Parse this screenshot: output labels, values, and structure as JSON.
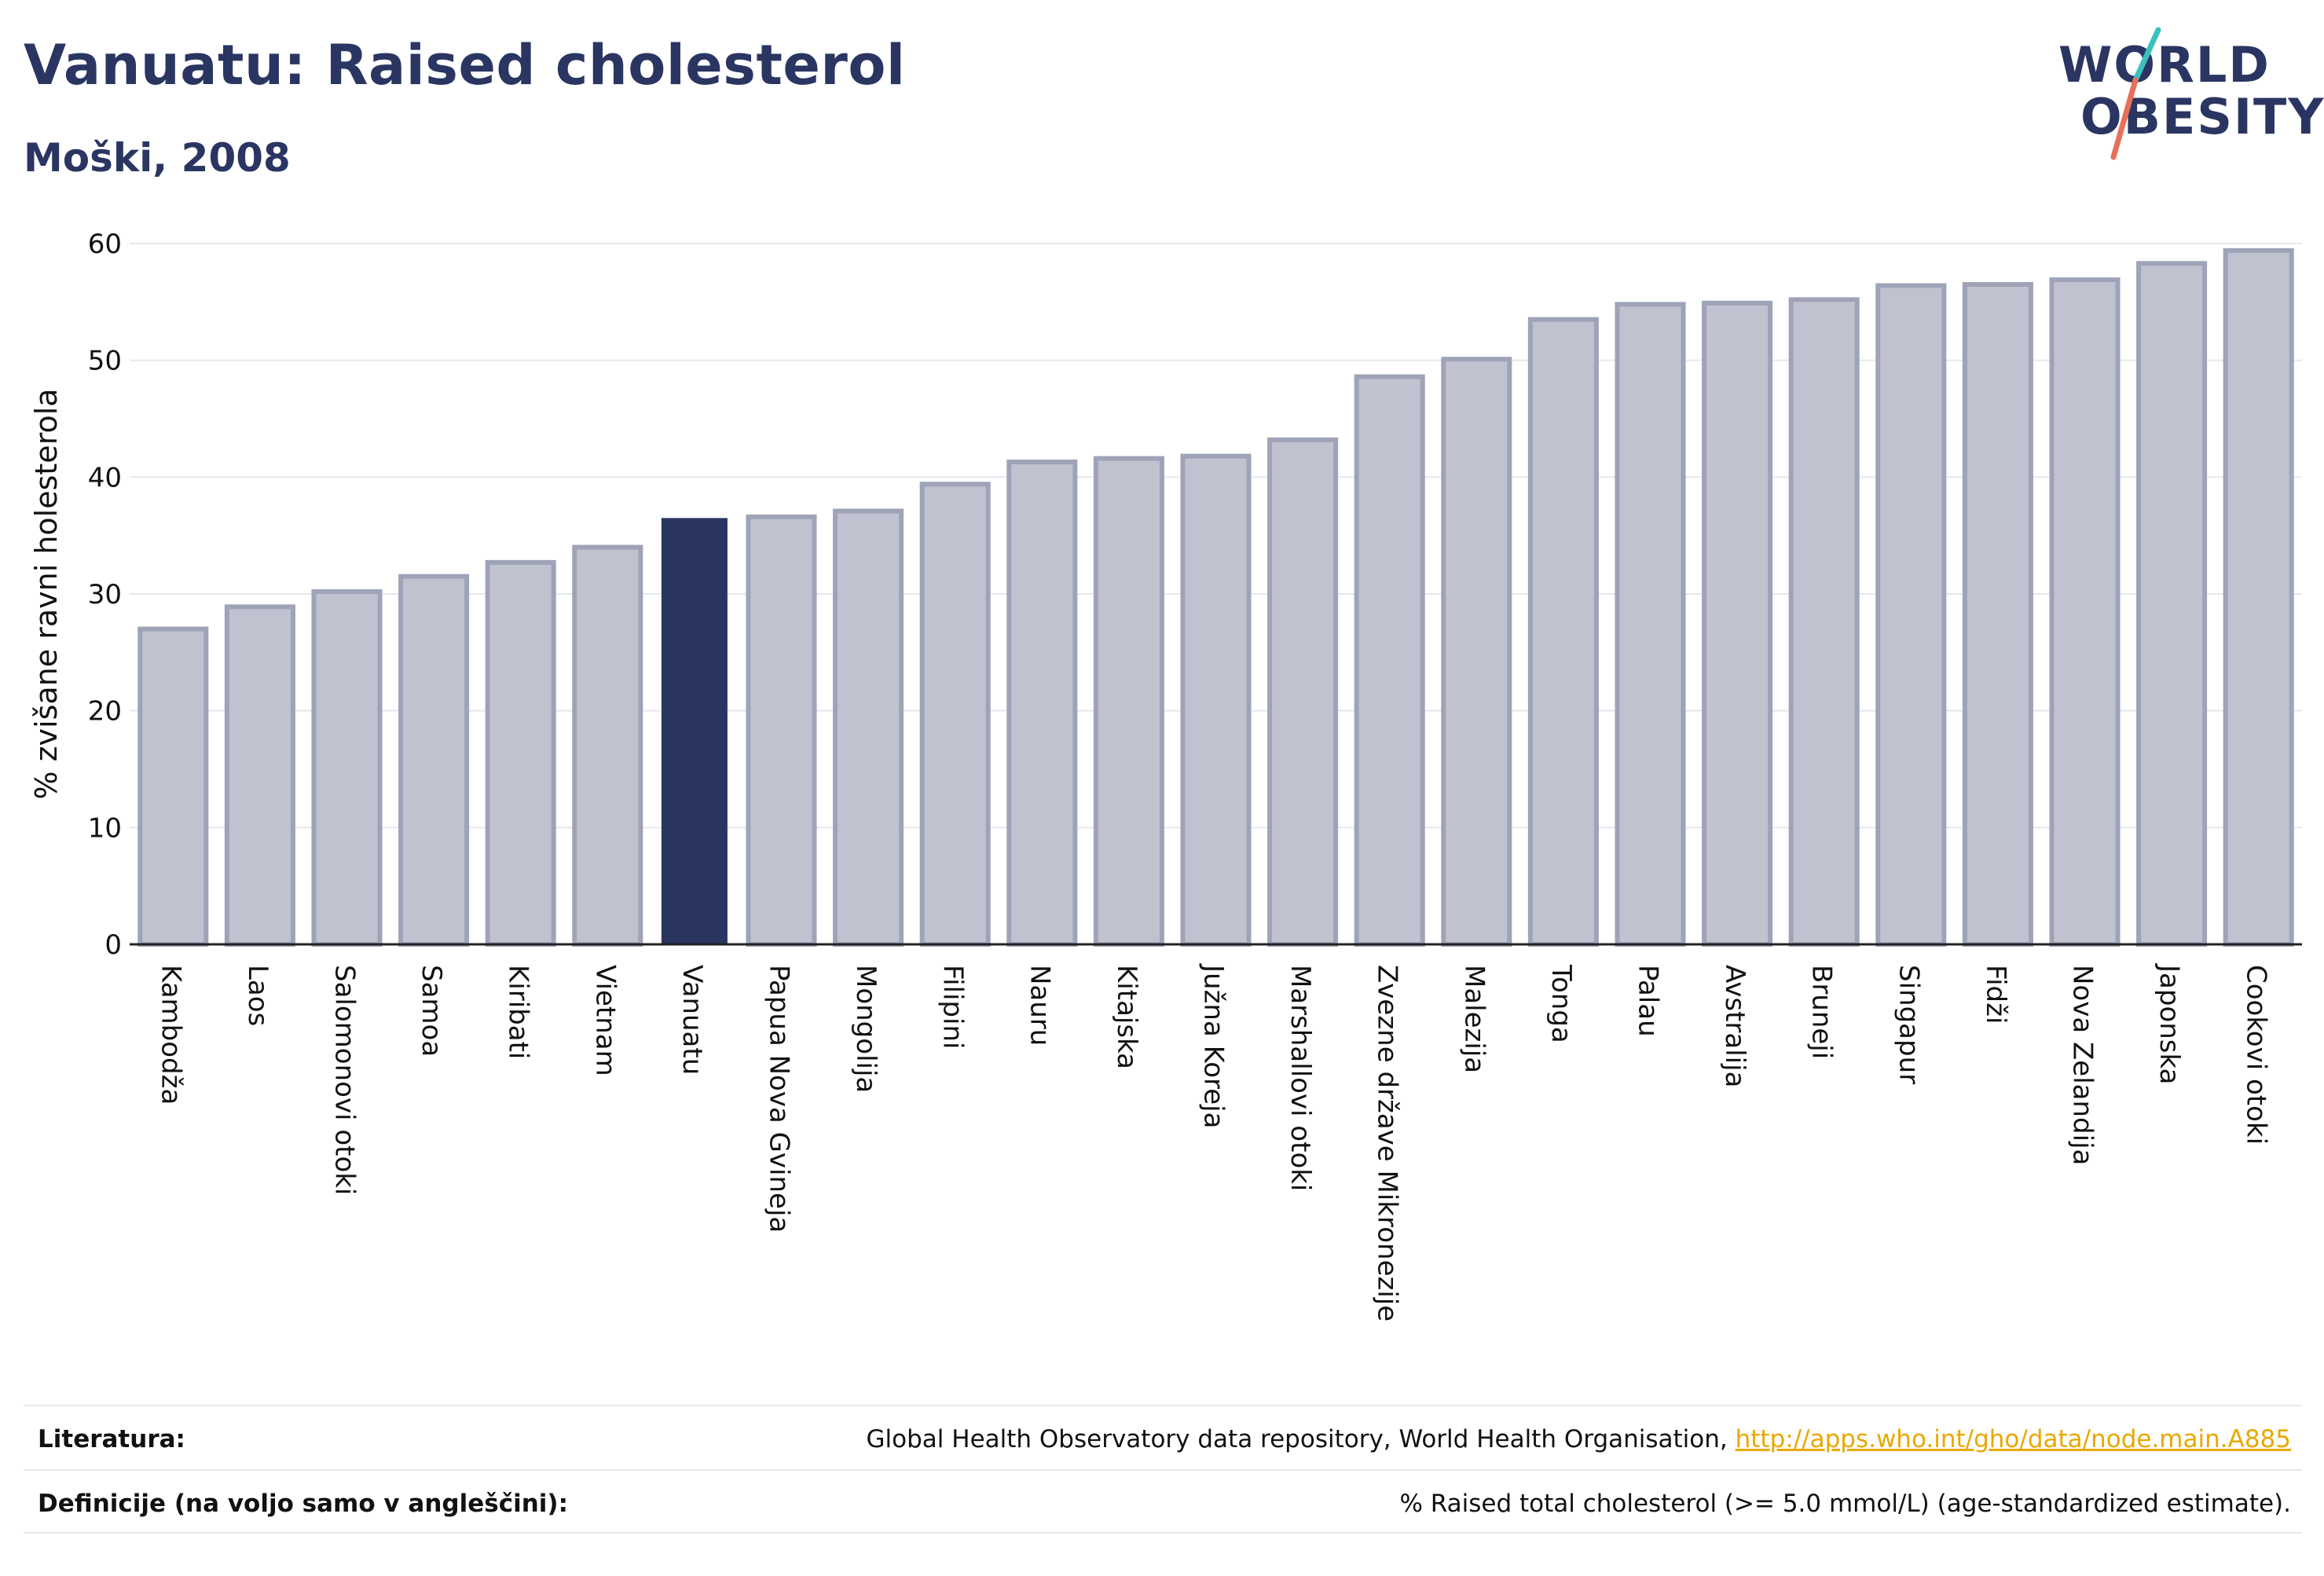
{
  "header": {
    "title": "Vanuatu: Raised cholesterol",
    "subtitle": "Moški, 2008"
  },
  "logo": {
    "line1": "WORLD",
    "line2": "OBESITY"
  },
  "colors": {
    "highlight": "#2a3562",
    "bar_fill": "#c0c3cf",
    "bar_stroke": "#9ea3b8",
    "grid": "#e6e8ef",
    "axis": "#2a3562",
    "logo_slash_top": "#3bc0c0",
    "logo_slash_bottom": "#e8705a",
    "link": "#e8a800"
  },
  "chart_data": {
    "type": "bar",
    "ylabel": "% zvišane ravni holesterola",
    "ylim": [
      0,
      60
    ],
    "yticks": [
      0,
      10,
      20,
      30,
      40,
      50,
      60
    ],
    "grid": true,
    "highlight_category": "Vanuatu",
    "categories": [
      "Kambodža",
      "Laos",
      "Salomonovi otoki",
      "Samoa",
      "Kiribati",
      "Vietnam",
      "Vanuatu",
      "Papua Nova Gvineja",
      "Mongolija",
      "Filipini",
      "Nauru",
      "Kitajska",
      "Južna Koreja",
      "Marshallovi otoki",
      "Zvezne države Mikronezije",
      "Malezija",
      "Tonga",
      "Palau",
      "Avstralija",
      "Bruneji",
      "Singapur",
      "Fidži",
      "Nova Zelandija",
      "Japonska",
      "Cookovi otoki"
    ],
    "values": [
      27.0,
      28.9,
      30.2,
      31.5,
      32.7,
      34.0,
      36.5,
      36.6,
      37.1,
      39.4,
      41.3,
      41.6,
      41.8,
      43.2,
      48.6,
      50.1,
      53.5,
      54.8,
      54.9,
      55.2,
      56.4,
      56.5,
      56.9,
      58.3,
      59.4
    ]
  },
  "footer": {
    "references_label": "Literatura:",
    "references_text": "Global Health Observatory data repository, World Health Organisation, ",
    "references_link": "http://apps.who.int/gho/data/node.main.A885",
    "definitions_label": "Definicije (na voljo samo v angleščini):",
    "definitions_text": "% Raised total cholesterol (>= 5.0 mmol/L) (age-standardized estimate)."
  }
}
